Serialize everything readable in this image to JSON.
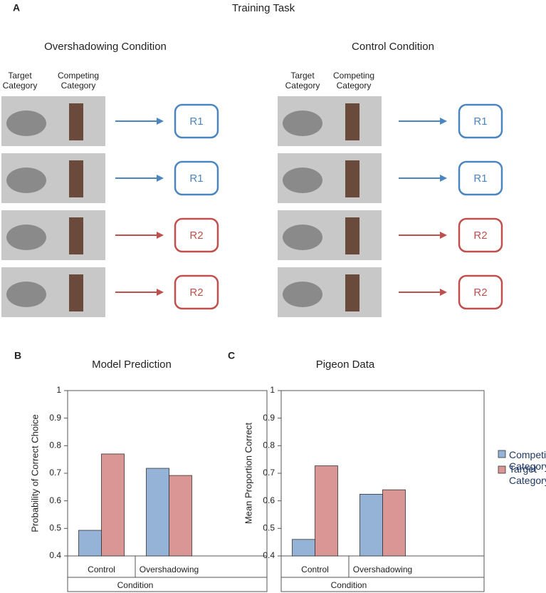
{
  "panel_a": {
    "label": "A",
    "title": "Training Task",
    "conditions": [
      {
        "title": "Overshadowing Condition",
        "headers": [
          [
            "Target",
            "Category"
          ],
          [
            "Competing",
            "Category"
          ]
        ],
        "responses": [
          "R1",
          "R1",
          "R2",
          "R2"
        ]
      },
      {
        "title": "Control Condition",
        "headers": [
          [
            "Target",
            "Category"
          ],
          [
            "Competing",
            "Category"
          ]
        ],
        "responses": [
          "R1",
          "R1",
          "R2",
          "R2"
        ]
      }
    ]
  },
  "chart_data": [
    {
      "type": "bar",
      "label": "B",
      "title": "Model Prediction",
      "ylabel": "Probability of Correct Choice",
      "xlabel": "Condition",
      "categories": [
        "Control",
        "Overshadowing"
      ],
      "series": [
        {
          "color": "#95b3d7",
          "values": [
            0.493,
            0.718
          ]
        },
        {
          "color": "#d99694",
          "values": [
            0.77,
            0.692
          ]
        }
      ],
      "ylim": [
        0.4,
        1
      ],
      "yticks": [
        0.4,
        0.5,
        0.6,
        0.7,
        0.8,
        0.9,
        1
      ]
    },
    {
      "type": "bar",
      "label": "C",
      "title": "Pigeon Data",
      "ylabel": "Mean Proportion Correct",
      "xlabel": "Condition",
      "categories": [
        "Control",
        "Overshadowing"
      ],
      "series": [
        {
          "name": "Competing Category",
          "color": "#95b3d7",
          "values": [
            0.46,
            0.624
          ]
        },
        {
          "name": "Target Category",
          "color": "#d99694",
          "values": [
            0.727,
            0.64
          ]
        }
      ],
      "ylim": [
        0.4,
        1
      ],
      "yticks": [
        0.4,
        0.5,
        0.6,
        0.7,
        0.8,
        0.9,
        1
      ]
    }
  ]
}
